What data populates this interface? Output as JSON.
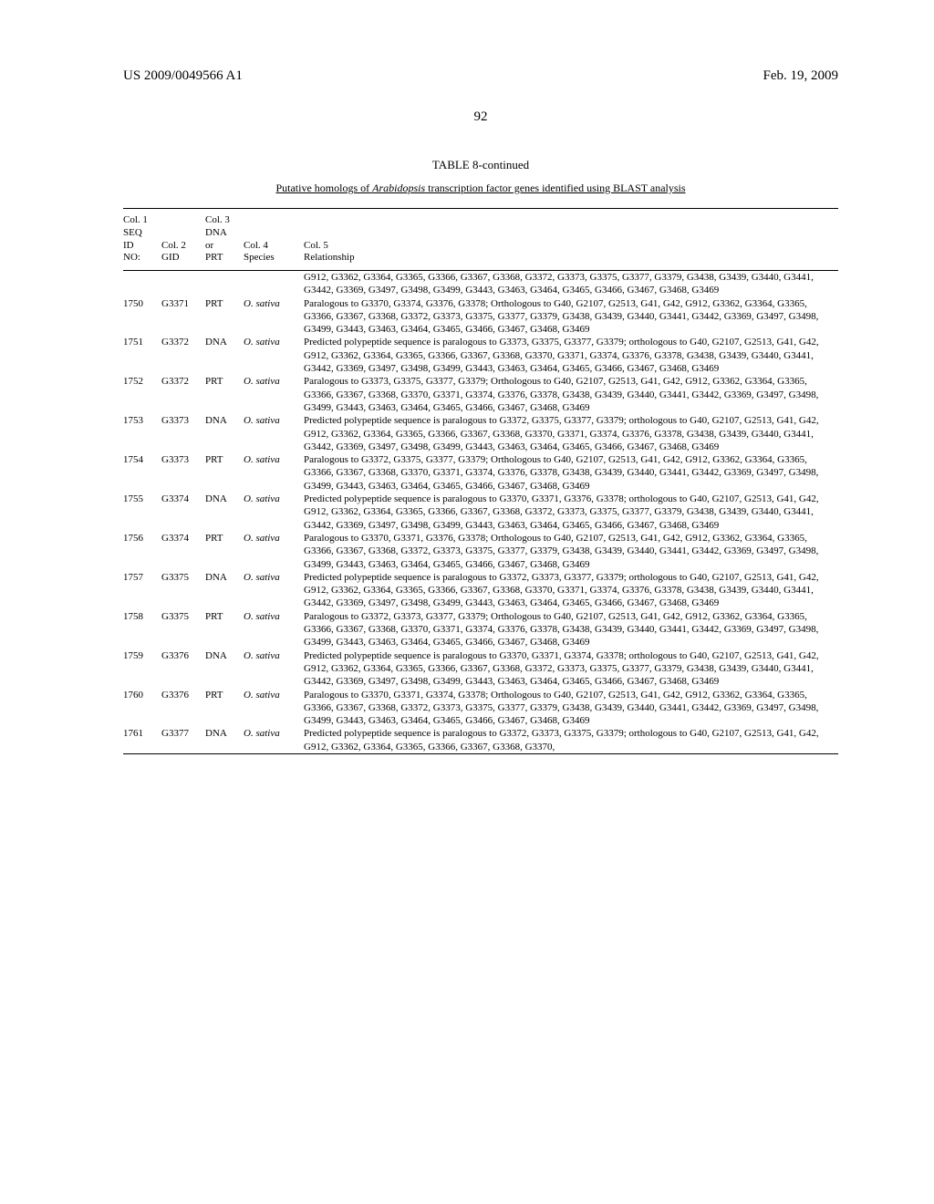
{
  "header": {
    "left": "US 2009/0049566 A1",
    "right": "Feb. 19, 2009"
  },
  "page_number": "92",
  "table": {
    "title": "TABLE 8-continued",
    "subtitle": "Putative homologs of Arabidopsis transcription factor genes identified using BLAST analysis",
    "columns": {
      "col1": "Col. 1\nSEQ\nID\nNO:",
      "col2": "Col. 2\nGID",
      "col3": "Col. 3\nDNA\nor\nPRT",
      "col4": "Col. 4\nSpecies",
      "col5": "Col. 5\nRelationship"
    },
    "pre_rows_relationship": "G912, G3362, G3364, G3365, G3366, G3367, G3368, G3372, G3373, G3375, G3377, G3379, G3438, G3439, G3440, G3441, G3442, G3369, G3497, G3498, G3499, G3443, G3463, G3464, G3465, G3466, G3467, G3468, G3469",
    "rows": [
      {
        "seq": "1750",
        "gid": "G3371",
        "type": "PRT",
        "species": "O. sativa",
        "rel": "Paralogous to G3370, G3374, G3376, G3378; Orthologous to G40, G2107, G2513, G41, G42, G912, G3362, G3364, G3365, G3366, G3367, G3368, G3372, G3373, G3375, G3377, G3379, G3438, G3439, G3440, G3441, G3442, G3369, G3497, G3498, G3499, G3443, G3463, G3464, G3465, G3466, G3467, G3468, G3469"
      },
      {
        "seq": "1751",
        "gid": "G3372",
        "type": "DNA",
        "species": "O. sativa",
        "rel": "Predicted polypeptide sequence is paralogous to G3373, G3375, G3377, G3379; orthologous to G40, G2107, G2513, G41, G42, G912, G3362, G3364, G3365, G3366, G3367, G3368, G3370, G3371, G3374, G3376, G3378, G3438, G3439, G3440, G3441, G3442, G3369, G3497, G3498, G3499, G3443, G3463, G3464, G3465, G3466, G3467, G3468, G3469"
      },
      {
        "seq": "1752",
        "gid": "G3372",
        "type": "PRT",
        "species": "O. sativa",
        "rel": "Paralogous to G3373, G3375, G3377, G3379; Orthologous to G40, G2107, G2513, G41, G42, G912, G3362, G3364, G3365, G3366, G3367, G3368, G3370, G3371, G3374, G3376, G3378, G3438, G3439, G3440, G3441, G3442, G3369, G3497, G3498, G3499, G3443, G3463, G3464, G3465, G3466, G3467, G3468, G3469"
      },
      {
        "seq": "1753",
        "gid": "G3373",
        "type": "DNA",
        "species": "O. sativa",
        "rel": "Predicted polypeptide sequence is paralogous to G3372, G3375, G3377, G3379; orthologous to G40, G2107, G2513, G41, G42, G912, G3362, G3364, G3365, G3366, G3367, G3368, G3370, G3371, G3374, G3376, G3378, G3438, G3439, G3440, G3441, G3442, G3369, G3497, G3498, G3499, G3443, G3463, G3464, G3465, G3466, G3467, G3468, G3469"
      },
      {
        "seq": "1754",
        "gid": "G3373",
        "type": "PRT",
        "species": "O. sativa",
        "rel": "Paralogous to G3372, G3375, G3377, G3379; Orthologous to G40, G2107, G2513, G41, G42, G912, G3362, G3364, G3365, G3366, G3367, G3368, G3370, G3371, G3374, G3376, G3378, G3438, G3439, G3440, G3441, G3442, G3369, G3497, G3498, G3499, G3443, G3463, G3464, G3465, G3466, G3467, G3468, G3469"
      },
      {
        "seq": "1755",
        "gid": "G3374",
        "type": "DNA",
        "species": "O. sativa",
        "rel": "Predicted polypeptide sequence is paralogous to G3370, G3371, G3376, G3378; orthologous to G40, G2107, G2513, G41, G42, G912, G3362, G3364, G3365, G3366, G3367, G3368, G3372, G3373, G3375, G3377, G3379, G3438, G3439, G3440, G3441, G3442, G3369, G3497, G3498, G3499, G3443, G3463, G3464, G3465, G3466, G3467, G3468, G3469"
      },
      {
        "seq": "1756",
        "gid": "G3374",
        "type": "PRT",
        "species": "O. sativa",
        "rel": "Paralogous to G3370, G3371, G3376, G3378; Orthologous to G40, G2107, G2513, G41, G42, G912, G3362, G3364, G3365, G3366, G3367, G3368, G3372, G3373, G3375, G3377, G3379, G3438, G3439, G3440, G3441, G3442, G3369, G3497, G3498, G3499, G3443, G3463, G3464, G3465, G3466, G3467, G3468, G3469"
      },
      {
        "seq": "1757",
        "gid": "G3375",
        "type": "DNA",
        "species": "O. sativa",
        "rel": "Predicted polypeptide sequence is paralogous to G3372, G3373, G3377, G3379; orthologous to G40, G2107, G2513, G41, G42, G912, G3362, G3364, G3365, G3366, G3367, G3368, G3370, G3371, G3374, G3376, G3378, G3438, G3439, G3440, G3441, G3442, G3369, G3497, G3498, G3499, G3443, G3463, G3464, G3465, G3466, G3467, G3468, G3469"
      },
      {
        "seq": "1758",
        "gid": "G3375",
        "type": "PRT",
        "species": "O. sativa",
        "rel": "Paralogous to G3372, G3373, G3377, G3379; Orthologous to G40, G2107, G2513, G41, G42, G912, G3362, G3364, G3365, G3366, G3367, G3368, G3370, G3371, G3374, G3376, G3378, G3438, G3439, G3440, G3441, G3442, G3369, G3497, G3498, G3499, G3443, G3463, G3464, G3465, G3466, G3467, G3468, G3469"
      },
      {
        "seq": "1759",
        "gid": "G3376",
        "type": "DNA",
        "species": "O. sativa",
        "rel": "Predicted polypeptide sequence is paralogous to G3370, G3371, G3374, G3378; orthologous to G40, G2107, G2513, G41, G42, G912, G3362, G3364, G3365, G3366, G3367, G3368, G3372, G3373, G3375, G3377, G3379, G3438, G3439, G3440, G3441, G3442, G3369, G3497, G3498, G3499, G3443, G3463, G3464, G3465, G3466, G3467, G3468, G3469"
      },
      {
        "seq": "1760",
        "gid": "G3376",
        "type": "PRT",
        "species": "O. sativa",
        "rel": "Paralogous to G3370, G3371, G3374, G3378; Orthologous to G40, G2107, G2513, G41, G42, G912, G3362, G3364, G3365, G3366, G3367, G3368, G3372, G3373, G3375, G3377, G3379, G3438, G3439, G3440, G3441, G3442, G3369, G3497, G3498, G3499, G3443, G3463, G3464, G3465, G3466, G3467, G3468, G3469"
      },
      {
        "seq": "1761",
        "gid": "G3377",
        "type": "DNA",
        "species": "O. sativa",
        "rel": "Predicted polypeptide sequence is paralogous to G3372, G3373, G3375, G3379; orthologous to G40, G2107, G2513, G41, G42, G912, G3362, G3364, G3365, G3366, G3367, G3368, G3370,"
      }
    ]
  }
}
